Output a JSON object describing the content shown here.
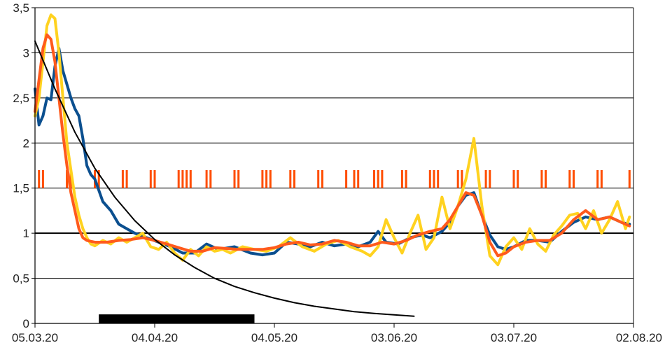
{
  "chart_data": {
    "type": "line",
    "title": "",
    "xlabel": "",
    "ylabel": "",
    "x_range": [
      "2020-03-05",
      "2020-08-02"
    ],
    "ylim": [
      0,
      3.5
    ],
    "y_ticks": [
      {
        "value": 0,
        "label": "0"
      },
      {
        "value": 0.5,
        "label": "0,5"
      },
      {
        "value": 1,
        "label": "1"
      },
      {
        "value": 1.5,
        "label": "1,5"
      },
      {
        "value": 2,
        "label": "2"
      },
      {
        "value": 2.5,
        "label": "2,5"
      },
      {
        "value": 3,
        "label": "3"
      },
      {
        "value": 3.5,
        "label": "3,5"
      }
    ],
    "x_ticks": [
      {
        "date": "2020-03-05",
        "label": "05.03.20"
      },
      {
        "date": "2020-04-04",
        "label": "04.04.20"
      },
      {
        "date": "2020-05-04",
        "label": "04.05.20"
      },
      {
        "date": "2020-06-03",
        "label": "03.06.20"
      },
      {
        "date": "2020-07-03",
        "label": "03.07.20"
      },
      {
        "date": "2020-08-02",
        "label": "02.08.20"
      }
    ],
    "grid": "horizontal",
    "reference_line": 1,
    "series": [
      {
        "color": "#0b4f8f",
        "points": [
          [
            "2020-03-05",
            2.6
          ],
          [
            "2020-03-06",
            2.2
          ],
          [
            "2020-03-07",
            2.3
          ],
          [
            "2020-03-08",
            2.5
          ],
          [
            "2020-03-09",
            2.48
          ],
          [
            "2020-03-10",
            2.85
          ],
          [
            "2020-03-11",
            3.05
          ],
          [
            "2020-03-12",
            2.8
          ],
          [
            "2020-03-13",
            2.65
          ],
          [
            "2020-03-14",
            2.5
          ],
          [
            "2020-03-15",
            2.38
          ],
          [
            "2020-03-16",
            2.3
          ],
          [
            "2020-03-17",
            2.05
          ],
          [
            "2020-03-18",
            1.75
          ],
          [
            "2020-03-19",
            1.65
          ],
          [
            "2020-03-20",
            1.6
          ],
          [
            "2020-03-22",
            1.35
          ],
          [
            "2020-03-24",
            1.25
          ],
          [
            "2020-03-26",
            1.1
          ],
          [
            "2020-03-28",
            1.05
          ],
          [
            "2020-03-30",
            1.0
          ],
          [
            "2020-04-02",
            0.95
          ],
          [
            "2020-04-05",
            0.9
          ],
          [
            "2020-04-08",
            0.85
          ],
          [
            "2020-04-11",
            0.78
          ],
          [
            "2020-04-14",
            0.78
          ],
          [
            "2020-04-17",
            0.88
          ],
          [
            "2020-04-20",
            0.82
          ],
          [
            "2020-04-24",
            0.85
          ],
          [
            "2020-04-28",
            0.78
          ],
          [
            "2020-05-01",
            0.76
          ],
          [
            "2020-05-04",
            0.78
          ],
          [
            "2020-05-07",
            0.9
          ],
          [
            "2020-05-10",
            0.88
          ],
          [
            "2020-05-13",
            0.85
          ],
          [
            "2020-05-16",
            0.9
          ],
          [
            "2020-05-19",
            0.86
          ],
          [
            "2020-05-22",
            0.88
          ],
          [
            "2020-05-25",
            0.85
          ],
          [
            "2020-05-28",
            0.9
          ],
          [
            "2020-05-30",
            1.02
          ],
          [
            "2020-06-01",
            0.9
          ],
          [
            "2020-06-04",
            0.88
          ],
          [
            "2020-06-07",
            0.95
          ],
          [
            "2020-06-10",
            0.98
          ],
          [
            "2020-06-12",
            0.95
          ],
          [
            "2020-06-15",
            1.02
          ],
          [
            "2020-06-17",
            1.12
          ],
          [
            "2020-06-19",
            1.3
          ],
          [
            "2020-06-21",
            1.42
          ],
          [
            "2020-06-23",
            1.45
          ],
          [
            "2020-06-25",
            1.2
          ],
          [
            "2020-06-27",
            0.98
          ],
          [
            "2020-06-29",
            0.85
          ],
          [
            "2020-07-01",
            0.82
          ],
          [
            "2020-07-03",
            0.85
          ],
          [
            "2020-07-06",
            0.92
          ],
          [
            "2020-07-09",
            0.92
          ],
          [
            "2020-07-12",
            0.9
          ],
          [
            "2020-07-15",
            1.02
          ],
          [
            "2020-07-18",
            1.12
          ],
          [
            "2020-07-21",
            1.18
          ],
          [
            "2020-07-24",
            1.15
          ],
          [
            "2020-07-27",
            1.18
          ],
          [
            "2020-07-30",
            1.12
          ],
          [
            "2020-08-01",
            1.1
          ]
        ]
      },
      {
        "color": "#ffd21f",
        "points": [
          [
            "2020-03-05",
            2.3
          ],
          [
            "2020-03-06",
            2.5
          ],
          [
            "2020-03-07",
            2.9
          ],
          [
            "2020-03-08",
            3.3
          ],
          [
            "2020-03-09",
            3.42
          ],
          [
            "2020-03-10",
            3.38
          ],
          [
            "2020-03-11",
            3.0
          ],
          [
            "2020-03-12",
            2.5
          ],
          [
            "2020-03-13",
            2.0
          ],
          [
            "2020-03-14",
            1.7
          ],
          [
            "2020-03-15",
            1.4
          ],
          [
            "2020-03-16",
            1.2
          ],
          [
            "2020-03-17",
            1.05
          ],
          [
            "2020-03-18",
            0.95
          ],
          [
            "2020-03-19",
            0.88
          ],
          [
            "2020-03-20",
            0.86
          ],
          [
            "2020-03-22",
            0.92
          ],
          [
            "2020-03-24",
            0.88
          ],
          [
            "2020-03-26",
            0.95
          ],
          [
            "2020-03-28",
            0.9
          ],
          [
            "2020-03-30",
            0.95
          ],
          [
            "2020-04-01",
            1.0
          ],
          [
            "2020-04-03",
            0.85
          ],
          [
            "2020-04-05",
            0.82
          ],
          [
            "2020-04-07",
            0.9
          ],
          [
            "2020-04-09",
            0.78
          ],
          [
            "2020-04-11",
            0.7
          ],
          [
            "2020-04-13",
            0.82
          ],
          [
            "2020-04-15",
            0.75
          ],
          [
            "2020-04-17",
            0.85
          ],
          [
            "2020-04-19",
            0.8
          ],
          [
            "2020-04-21",
            0.82
          ],
          [
            "2020-04-23",
            0.78
          ],
          [
            "2020-04-26",
            0.85
          ],
          [
            "2020-04-29",
            0.82
          ],
          [
            "2020-05-02",
            0.8
          ],
          [
            "2020-05-05",
            0.85
          ],
          [
            "2020-05-08",
            0.95
          ],
          [
            "2020-05-11",
            0.85
          ],
          [
            "2020-05-14",
            0.8
          ],
          [
            "2020-05-17",
            0.88
          ],
          [
            "2020-05-20",
            0.92
          ],
          [
            "2020-05-23",
            0.85
          ],
          [
            "2020-05-26",
            0.8
          ],
          [
            "2020-05-28",
            0.75
          ],
          [
            "2020-05-30",
            0.85
          ],
          [
            "2020-06-01",
            1.15
          ],
          [
            "2020-06-03",
            0.95
          ],
          [
            "2020-06-05",
            0.78
          ],
          [
            "2020-06-07",
            1.0
          ],
          [
            "2020-06-09",
            1.2
          ],
          [
            "2020-06-11",
            0.82
          ],
          [
            "2020-06-13",
            0.95
          ],
          [
            "2020-06-15",
            1.4
          ],
          [
            "2020-06-17",
            1.05
          ],
          [
            "2020-06-19",
            1.3
          ],
          [
            "2020-06-21",
            1.6
          ],
          [
            "2020-06-23",
            2.05
          ],
          [
            "2020-06-25",
            1.3
          ],
          [
            "2020-06-27",
            0.75
          ],
          [
            "2020-06-29",
            0.65
          ],
          [
            "2020-07-01",
            0.85
          ],
          [
            "2020-07-03",
            0.95
          ],
          [
            "2020-07-05",
            0.82
          ],
          [
            "2020-07-07",
            1.05
          ],
          [
            "2020-07-09",
            0.88
          ],
          [
            "2020-07-11",
            0.8
          ],
          [
            "2020-07-13",
            0.98
          ],
          [
            "2020-07-15",
            1.08
          ],
          [
            "2020-07-17",
            1.2
          ],
          [
            "2020-07-19",
            1.22
          ],
          [
            "2020-07-21",
            1.05
          ],
          [
            "2020-07-23",
            1.25
          ],
          [
            "2020-07-25",
            1.0
          ],
          [
            "2020-07-27",
            1.15
          ],
          [
            "2020-07-29",
            1.35
          ],
          [
            "2020-07-31",
            1.05
          ],
          [
            "2020-08-01",
            1.18
          ]
        ]
      },
      {
        "color": "#ff5a1c",
        "points": [
          [
            "2020-03-05",
            2.35
          ],
          [
            "2020-03-06",
            2.7
          ],
          [
            "2020-03-07",
            3.05
          ],
          [
            "2020-03-08",
            3.2
          ],
          [
            "2020-03-09",
            3.15
          ],
          [
            "2020-03-10",
            2.9
          ],
          [
            "2020-03-11",
            2.5
          ],
          [
            "2020-03-12",
            2.1
          ],
          [
            "2020-03-13",
            1.75
          ],
          [
            "2020-03-14",
            1.45
          ],
          [
            "2020-03-15",
            1.25
          ],
          [
            "2020-03-16",
            1.05
          ],
          [
            "2020-03-17",
            0.95
          ],
          [
            "2020-03-18",
            0.92
          ],
          [
            "2020-03-20",
            0.9
          ],
          [
            "2020-03-23",
            0.9
          ],
          [
            "2020-03-26",
            0.92
          ],
          [
            "2020-03-29",
            0.93
          ],
          [
            "2020-04-01",
            0.95
          ],
          [
            "2020-04-04",
            0.92
          ],
          [
            "2020-04-07",
            0.88
          ],
          [
            "2020-04-10",
            0.84
          ],
          [
            "2020-04-13",
            0.8
          ],
          [
            "2020-04-16",
            0.8
          ],
          [
            "2020-04-19",
            0.84
          ],
          [
            "2020-04-22",
            0.83
          ],
          [
            "2020-04-25",
            0.82
          ],
          [
            "2020-04-28",
            0.82
          ],
          [
            "2020-05-01",
            0.82
          ],
          [
            "2020-05-04",
            0.84
          ],
          [
            "2020-05-07",
            0.88
          ],
          [
            "2020-05-10",
            0.9
          ],
          [
            "2020-05-13",
            0.87
          ],
          [
            "2020-05-16",
            0.88
          ],
          [
            "2020-05-19",
            0.92
          ],
          [
            "2020-05-22",
            0.9
          ],
          [
            "2020-05-25",
            0.86
          ],
          [
            "2020-05-28",
            0.86
          ],
          [
            "2020-05-31",
            0.9
          ],
          [
            "2020-06-03",
            0.88
          ],
          [
            "2020-06-06",
            0.92
          ],
          [
            "2020-06-09",
            0.98
          ],
          [
            "2020-06-12",
            1.02
          ],
          [
            "2020-06-15",
            1.05
          ],
          [
            "2020-06-17",
            1.15
          ],
          [
            "2020-06-19",
            1.3
          ],
          [
            "2020-06-21",
            1.45
          ],
          [
            "2020-06-23",
            1.42
          ],
          [
            "2020-06-25",
            1.2
          ],
          [
            "2020-06-27",
            0.9
          ],
          [
            "2020-06-29",
            0.75
          ],
          [
            "2020-07-01",
            0.78
          ],
          [
            "2020-07-03",
            0.85
          ],
          [
            "2020-07-06",
            0.9
          ],
          [
            "2020-07-09",
            0.92
          ],
          [
            "2020-07-12",
            0.92
          ],
          [
            "2020-07-15",
            1.0
          ],
          [
            "2020-07-18",
            1.15
          ],
          [
            "2020-07-21",
            1.25
          ],
          [
            "2020-07-24",
            1.15
          ],
          [
            "2020-07-27",
            1.18
          ],
          [
            "2020-07-30",
            1.12
          ],
          [
            "2020-08-01",
            1.08
          ]
        ]
      },
      {
        "color": "#000000",
        "points": [
          [
            "2020-03-05",
            3.13
          ],
          [
            "2020-03-10",
            2.6
          ],
          [
            "2020-03-15",
            2.12
          ],
          [
            "2020-03-20",
            1.72
          ],
          [
            "2020-03-25",
            1.4
          ],
          [
            "2020-03-30",
            1.14
          ],
          [
            "2020-04-04",
            0.93
          ],
          [
            "2020-04-09",
            0.76
          ],
          [
            "2020-04-14",
            0.62
          ],
          [
            "2020-04-19",
            0.5
          ],
          [
            "2020-04-24",
            0.41
          ],
          [
            "2020-04-29",
            0.34
          ],
          [
            "2020-05-04",
            0.28
          ],
          [
            "2020-05-09",
            0.23
          ],
          [
            "2020-05-14",
            0.19
          ],
          [
            "2020-05-19",
            0.16
          ],
          [
            "2020-05-24",
            0.13
          ],
          [
            "2020-05-29",
            0.11
          ],
          [
            "2020-06-03",
            0.095
          ],
          [
            "2020-06-08",
            0.08
          ]
        ]
      }
    ],
    "event_markers": {
      "color": "#ff4d00",
      "y_range": [
        1.5,
        1.7
      ],
      "dates": [
        "2020-03-06",
        "2020-03-07",
        "2020-03-13",
        "2020-03-14",
        "2020-03-20",
        "2020-03-21",
        "2020-03-27",
        "2020-03-28",
        "2020-04-03",
        "2020-04-04",
        "2020-04-10",
        "2020-04-11",
        "2020-04-12",
        "2020-04-13",
        "2020-04-17",
        "2020-04-18",
        "2020-04-24",
        "2020-04-25",
        "2020-05-01",
        "2020-05-02",
        "2020-05-03",
        "2020-05-08",
        "2020-05-09",
        "2020-05-15",
        "2020-05-16",
        "2020-05-22",
        "2020-05-24",
        "2020-05-25",
        "2020-05-29",
        "2020-05-30",
        "2020-05-31",
        "2020-06-05",
        "2020-06-06",
        "2020-06-12",
        "2020-06-13",
        "2020-06-14",
        "2020-06-19",
        "2020-06-20",
        "2020-06-26",
        "2020-06-27",
        "2020-07-03",
        "2020-07-04",
        "2020-07-10",
        "2020-07-11",
        "2020-07-17",
        "2020-07-18",
        "2020-07-24",
        "2020-07-25",
        "2020-08-01"
      ]
    },
    "period_bar": {
      "color": "#000000",
      "start": "2020-03-21",
      "end": "2020-04-29",
      "y_range": [
        0,
        0.1
      ]
    }
  }
}
